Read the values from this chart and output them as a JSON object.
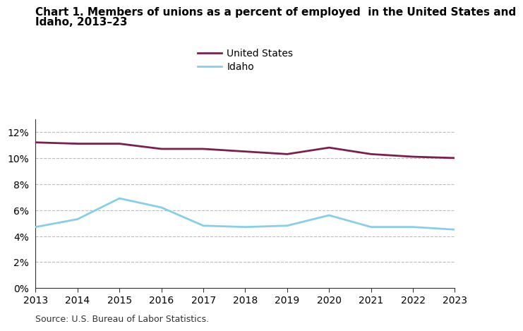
{
  "title_line1": "Chart 1. Members of unions as a percent of employed  in the United States and",
  "title_line2": "Idaho, 2013–23",
  "years": [
    2013,
    2014,
    2015,
    2016,
    2017,
    2018,
    2019,
    2020,
    2021,
    2022,
    2023
  ],
  "us_values": [
    11.2,
    11.1,
    11.1,
    10.7,
    10.7,
    10.5,
    10.3,
    10.8,
    10.3,
    10.1,
    10.0
  ],
  "idaho_values": [
    4.7,
    5.3,
    6.9,
    6.2,
    4.8,
    4.7,
    4.8,
    5.6,
    4.7,
    4.7,
    4.5
  ],
  "us_color": "#7B1F4E",
  "idaho_color": "#87CEEB",
  "us_label": "United States",
  "idaho_label": "Idaho",
  "ylim": [
    0,
    13
  ],
  "yticks": [
    0,
    2,
    4,
    6,
    8,
    10,
    12
  ],
  "ytick_labels": [
    "0%",
    "2%",
    "4%",
    "6%",
    "8%",
    "10%",
    "12%"
  ],
  "source_text": "Source: U.S. Bureau of Labor Statistics.",
  "title_fontsize": 11,
  "axis_fontsize": 10,
  "legend_fontsize": 10,
  "line_width": 2.0,
  "grid_color": "#bbbbbb",
  "background_color": "#ffffff"
}
